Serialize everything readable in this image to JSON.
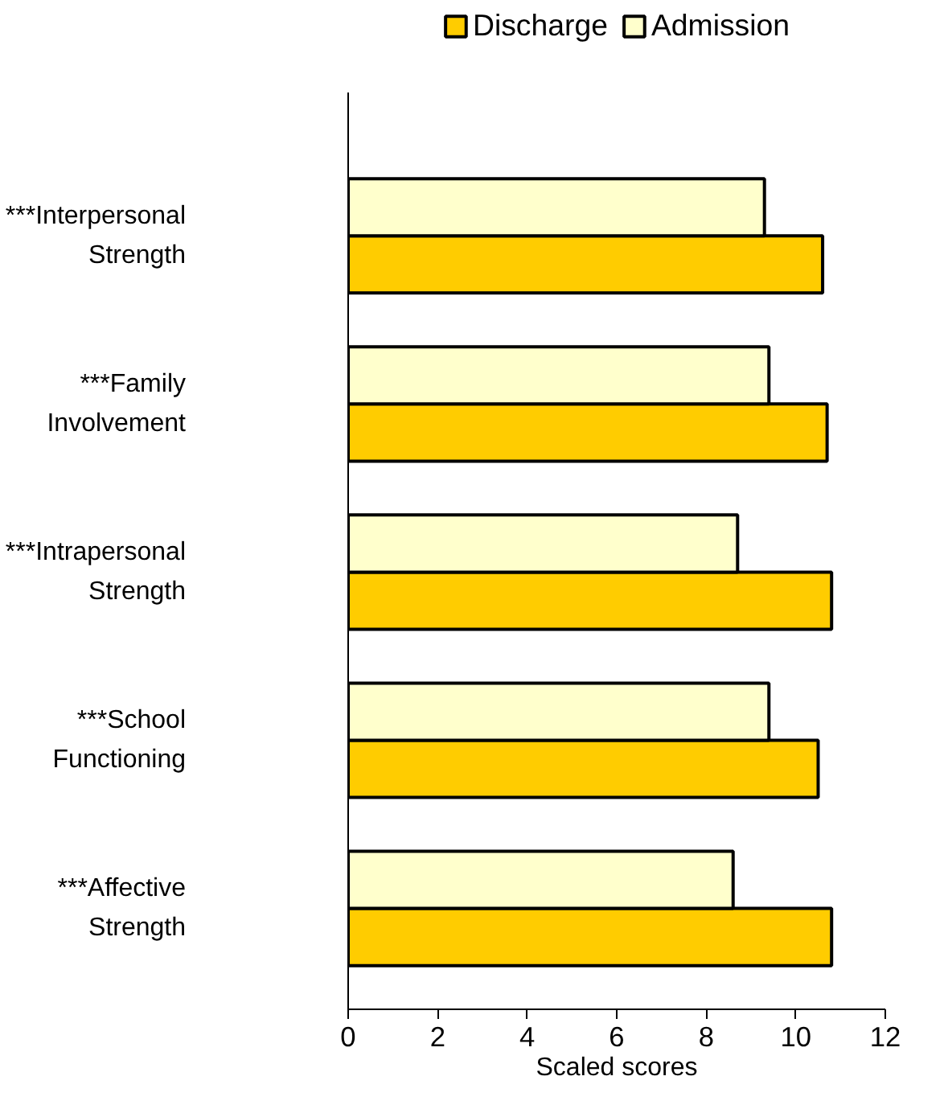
{
  "chart_data": {
    "type": "bar",
    "orientation": "horizontal",
    "xlabel": "Scaled scores",
    "categories": [
      "***Interpersonal\nStrength",
      "***Family\nInvolvement",
      "***Intrapersonal\nStrength",
      "***School\nFunctioning",
      "***Affective\nStrength"
    ],
    "series": [
      {
        "name": "Discharge",
        "color": "#ffcc00",
        "values": [
          10.6,
          10.7,
          10.8,
          10.5,
          10.8
        ]
      },
      {
        "name": "Admission",
        "color": "#ffffcc",
        "values": [
          9.3,
          9.4,
          8.7,
          9.4,
          8.6
        ]
      }
    ],
    "xlim": [
      0,
      12
    ],
    "xticks": [
      0,
      2,
      4,
      6,
      8,
      10,
      12
    ],
    "grid": false,
    "legend": "top"
  }
}
